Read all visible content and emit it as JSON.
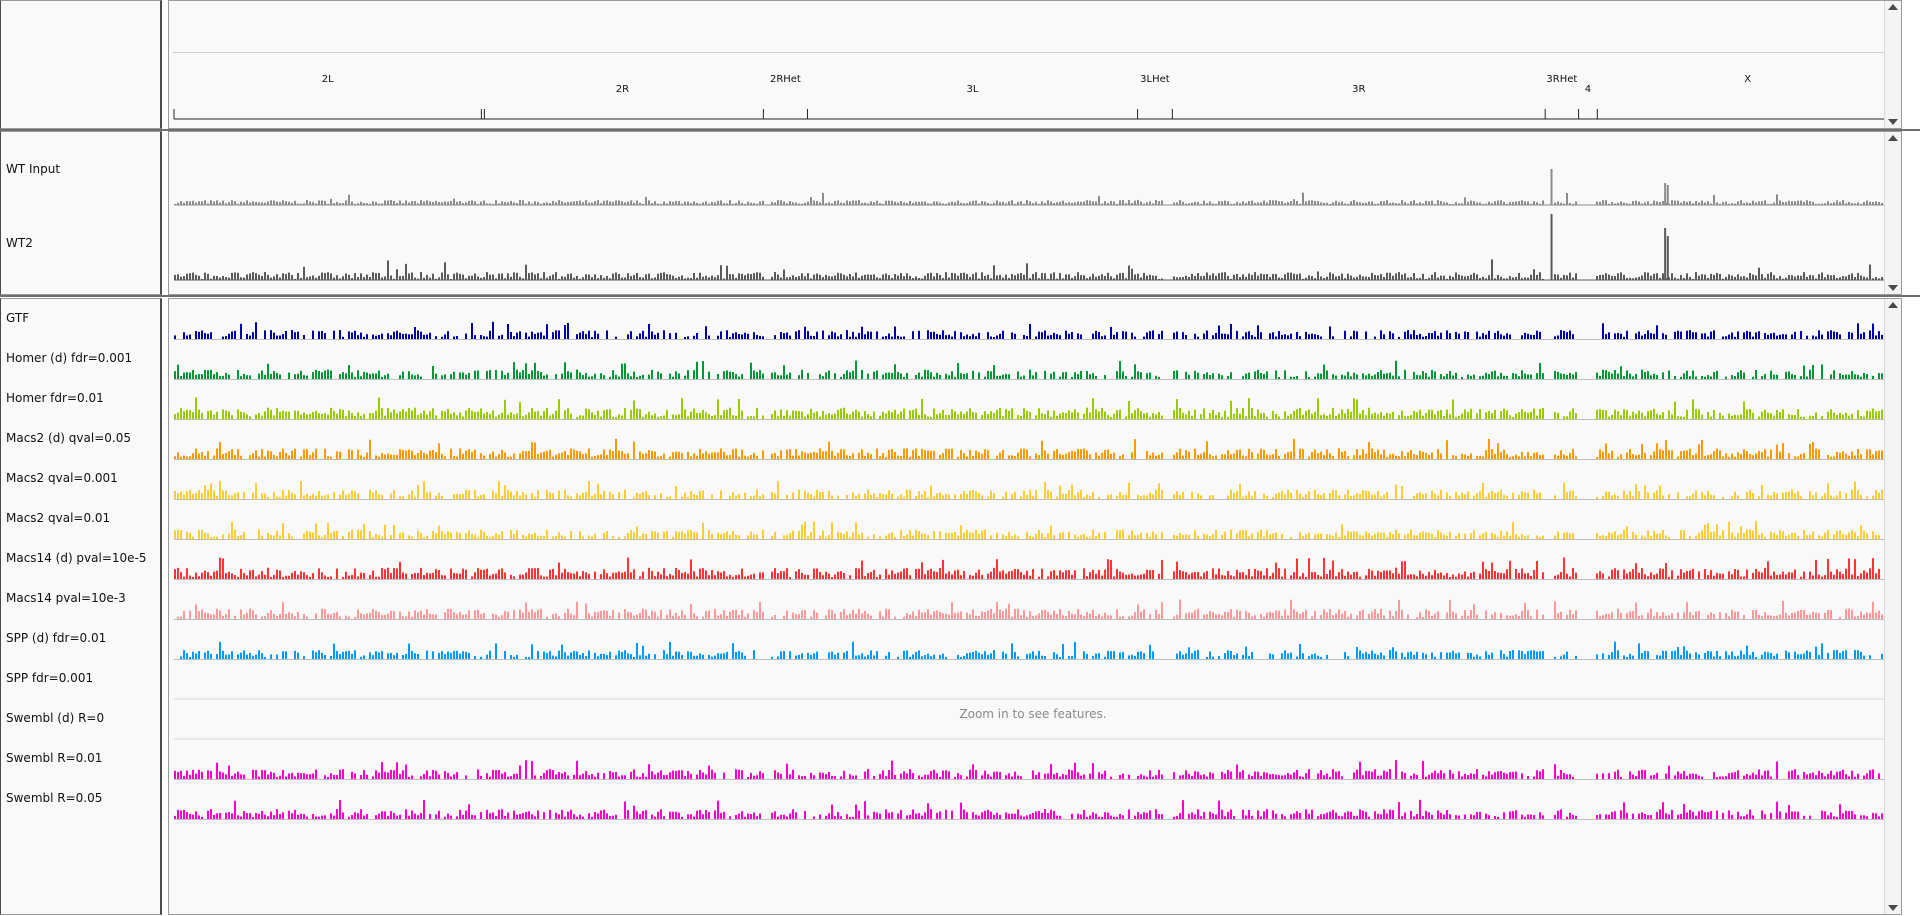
{
  "ruler": {
    "chromosomes": [
      {
        "name": "2L",
        "start": 0,
        "end": 23.0,
        "row": 0
      },
      {
        "name": "2R",
        "start": 23.0,
        "end": 44.1,
        "row": 1
      },
      {
        "name": "2RHet",
        "start": 44.1,
        "end": 47.4,
        "row": 0
      },
      {
        "name": "3L",
        "start": 47.4,
        "end": 72.1,
        "row": 1
      },
      {
        "name": "3LHet",
        "start": 72.1,
        "end": 74.7,
        "row": 0
      },
      {
        "name": "3R",
        "start": 74.7,
        "end": 102.6,
        "row": 1
      },
      {
        "name": "3RHet",
        "start": 102.6,
        "end": 105.1,
        "row": 0
      },
      {
        "name": "4",
        "start": 105.1,
        "end": 106.5,
        "row": 1
      },
      {
        "name": "X",
        "start": 106.5,
        "end": 129.0,
        "row": 0
      }
    ],
    "genome_length": 129.0
  },
  "coverage_tracks": [
    {
      "name": "WT Input",
      "color": "#8c8c8c"
    },
    {
      "name": "WT2",
      "color": "#5a5a5a"
    }
  ],
  "feature_tracks": [
    {
      "name": "GTF",
      "color": "#0000a8",
      "density": 0.45
    },
    {
      "name": "Homer (d) fdr=0.001",
      "color": "#009933",
      "density": 0.55
    },
    {
      "name": "Homer fdr=0.01",
      "color": "#99cc00",
      "density": 0.95
    },
    {
      "name": "Macs2 (d) qval=0.05",
      "color": "#ff9900",
      "density": 0.8
    },
    {
      "name": "Macs2 qval=0.001",
      "color": "#ffcc33",
      "density": 0.55
    },
    {
      "name": "Macs2 qval=0.01",
      "color": "#ffcc33",
      "density": 0.55
    },
    {
      "name": "Macs14 (d) pval=10e-5",
      "color": "#ff3333",
      "density": 0.95
    },
    {
      "name": "Macs14 pval=10e-3",
      "color": "#ff9999",
      "density": 0.75
    },
    {
      "name": "SPP (d) fdr=0.01",
      "color": "#0099ff",
      "density": 0.45
    },
    {
      "name": "SPP fdr=0.001",
      "color": "#ffffff",
      "density": 0
    },
    {
      "name": "Swembl (d) R=0",
      "color": "#ffffff",
      "density": 0,
      "message": "Zoom in to see features."
    },
    {
      "name": "Swembl R=0.01",
      "color": "#ff00cc",
      "density": 0.65
    },
    {
      "name": "Swembl R=0.05",
      "color": "#ff00cc",
      "density": 0.65
    }
  ]
}
